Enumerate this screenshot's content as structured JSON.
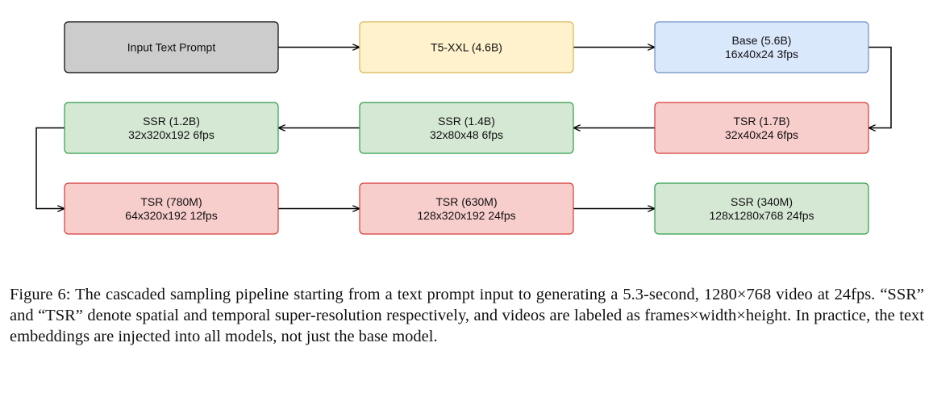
{
  "nodes": [
    {
      "id": "input",
      "lines": [
        "Input Text Prompt"
      ],
      "fill": "#cccccc",
      "stroke": "#000000"
    },
    {
      "id": "t5",
      "lines": [
        "T5-XXL (4.6B)"
      ],
      "fill": "#fff2cc",
      "stroke": "#d6b656"
    },
    {
      "id": "base",
      "lines": [
        "Base (5.6B)",
        "16x40x24 3fps"
      ],
      "fill": "#dae8fc",
      "stroke": "#6c8ebf"
    },
    {
      "id": "tsr1",
      "lines": [
        "TSR (1.7B)",
        "32x40x24 6fps"
      ],
      "fill": "#f8cecc",
      "stroke": "#d63a3a"
    },
    {
      "id": "ssr1",
      "lines": [
        "SSR (1.4B)",
        "32x80x48 6fps"
      ],
      "fill": "#d5e8d4",
      "stroke": "#2e9e4a"
    },
    {
      "id": "ssr2",
      "lines": [
        "SSR (1.2B)",
        "32x320x192 6fps"
      ],
      "fill": "#d5e8d4",
      "stroke": "#2e9e4a"
    },
    {
      "id": "tsr2",
      "lines": [
        "TSR (780M)",
        "64x320x192 12fps"
      ],
      "fill": "#f8cecc",
      "stroke": "#d63a3a"
    },
    {
      "id": "tsr3",
      "lines": [
        "TSR (630M)",
        "128x320x192 24fps"
      ],
      "fill": "#f8cecc",
      "stroke": "#d63a3a"
    },
    {
      "id": "ssr3",
      "lines": [
        "SSR (340M)",
        "128x1280x768 24fps"
      ],
      "fill": "#d5e8d4",
      "stroke": "#2e9e4a"
    }
  ],
  "edges": [
    {
      "from": "input",
      "to": "t5"
    },
    {
      "from": "t5",
      "to": "base"
    },
    {
      "from": "base",
      "to": "tsr1"
    },
    {
      "from": "tsr1",
      "to": "ssr1"
    },
    {
      "from": "ssr1",
      "to": "ssr2"
    },
    {
      "from": "ssr2",
      "to": "tsr2"
    },
    {
      "from": "tsr2",
      "to": "tsr3"
    },
    {
      "from": "tsr3",
      "to": "ssr3"
    }
  ],
  "caption": "Figure 6: The cascaded sampling pipeline starting from a text prompt input to generating a 5.3-second, 1280×768 video at 24fps. “SSR” and “TSR” denote spatial and temporal super-resolution respectively, and videos are labeled as frames×width×height. In practice, the text embeddings are injected into all models, not just the base model."
}
